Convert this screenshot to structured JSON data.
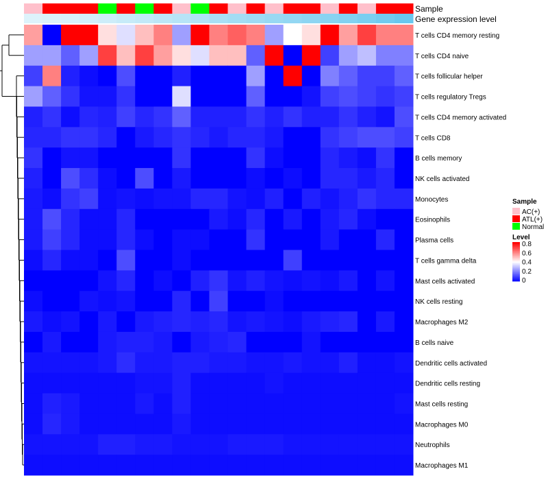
{
  "chart_data": {
    "type": "heatmap",
    "annotations": [
      {
        "name": "Sample",
        "values": [
          "AC(+)",
          "ATL(+)",
          "ATL(+)",
          "ATL(+)",
          "Normal",
          "ATL(+)",
          "Normal",
          "ATL(+)",
          "AC(+)",
          "Normal",
          "ATL(+)",
          "AC(+)",
          "ATL(+)",
          "AC(+)",
          "ATL(+)",
          "ATL(+)",
          "AC(+)",
          "ATL(+)",
          "AC(+)",
          "ATL(+)",
          "ATL(+)"
        ]
      },
      {
        "name": "Gene expression level",
        "values": [
          0.02,
          0.04,
          0.06,
          0.1,
          0.14,
          0.18,
          0.22,
          0.26,
          0.3,
          0.34,
          0.4,
          0.44,
          0.48,
          0.52,
          0.56,
          0.6,
          0.64,
          0.68,
          0.74,
          0.8,
          0.86
        ]
      }
    ],
    "rows": [
      "T cells CD4 memory resting",
      "T cells CD4 naive",
      "T cells follicular helper",
      "T cells regulatory  Tregs",
      "T cells CD4 memory activated",
      "T cells CD8",
      "B cells memory",
      "NK cells activated",
      "Monocytes",
      "Eosinophils",
      "Plasma cells",
      "T cells gamma delta",
      "Mast cells activated",
      "NK cells resting",
      "Macrophages M2",
      "B cells naive",
      "Dendritic cells activated",
      "Dendritic cells resting",
      "Mast cells resting",
      "Macrophages M0",
      "Neutrophils",
      "Macrophages M1"
    ],
    "values": [
      [
        0.55,
        0.0,
        0.8,
        0.8,
        0.45,
        0.35,
        0.5,
        0.6,
        0.25,
        0.8,
        0.6,
        0.65,
        0.6,
        0.25,
        0.4,
        0.45,
        0.8,
        0.55,
        0.7,
        0.6,
        0.6
      ],
      [
        0.25,
        0.25,
        0.15,
        0.25,
        0.7,
        0.5,
        0.7,
        0.55,
        0.45,
        0.35,
        0.5,
        0.5,
        0.15,
        0.8,
        0.0,
        0.8,
        0.1,
        0.25,
        0.3,
        0.2,
        0.2
      ],
      [
        0.1,
        0.6,
        0.05,
        0.02,
        0.0,
        0.12,
        0.0,
        0.0,
        0.05,
        0.0,
        0.0,
        0.0,
        0.25,
        0.0,
        0.8,
        0.0,
        0.2,
        0.15,
        0.1,
        0.1,
        0.15
      ],
      [
        0.25,
        0.15,
        0.08,
        0.03,
        0.03,
        0.08,
        0.0,
        0.0,
        0.35,
        0.0,
        0.0,
        0.0,
        0.15,
        0.0,
        0.0,
        0.03,
        0.1,
        0.12,
        0.1,
        0.08,
        0.1
      ],
      [
        0.05,
        0.08,
        0.02,
        0.06,
        0.05,
        0.1,
        0.06,
        0.08,
        0.15,
        0.05,
        0.05,
        0.05,
        0.08,
        0.05,
        0.08,
        0.05,
        0.05,
        0.08,
        0.05,
        0.03,
        0.12
      ],
      [
        0.06,
        0.06,
        0.08,
        0.08,
        0.06,
        0.0,
        0.04,
        0.06,
        0.08,
        0.06,
        0.04,
        0.06,
        0.06,
        0.04,
        0.0,
        0.0,
        0.08,
        0.1,
        0.12,
        0.12,
        0.1
      ],
      [
        0.08,
        0.0,
        0.03,
        0.03,
        0.0,
        0.0,
        0.0,
        0.0,
        0.08,
        0.0,
        0.0,
        0.0,
        0.08,
        0.02,
        0.0,
        0.0,
        0.06,
        0.04,
        0.02,
        0.08,
        0.0
      ],
      [
        0.05,
        0.0,
        0.12,
        0.07,
        0.02,
        0.0,
        0.12,
        0.0,
        0.04,
        0.0,
        0.0,
        0.0,
        0.02,
        0.0,
        0.02,
        0.0,
        0.06,
        0.06,
        0.04,
        0.06,
        0.0
      ],
      [
        0.04,
        0.02,
        0.08,
        0.1,
        0.02,
        0.03,
        0.02,
        0.03,
        0.03,
        0.06,
        0.06,
        0.03,
        0.02,
        0.05,
        0.0,
        0.05,
        0.03,
        0.05,
        0.08,
        0.06,
        0.06
      ],
      [
        0.04,
        0.12,
        0.06,
        0.02,
        0.02,
        0.06,
        0.0,
        0.0,
        0.0,
        0.0,
        0.04,
        0.02,
        0.06,
        0.0,
        0.04,
        0.0,
        0.04,
        0.06,
        0.02,
        0.0,
        0.0
      ],
      [
        0.04,
        0.1,
        0.06,
        0.02,
        0.02,
        0.06,
        0.02,
        0.0,
        0.02,
        0.02,
        0.0,
        0.0,
        0.08,
        0.0,
        0.0,
        0.0,
        0.04,
        0.0,
        0.0,
        0.06,
        0.0
      ],
      [
        0.02,
        0.06,
        0.02,
        0.02,
        0.0,
        0.12,
        0.0,
        0.0,
        0.02,
        0.0,
        0.0,
        0.0,
        0.0,
        0.0,
        0.1,
        0.0,
        0.0,
        0.0,
        0.0,
        0.0,
        0.0
      ],
      [
        0.0,
        0.0,
        0.0,
        0.0,
        0.03,
        0.06,
        0.0,
        0.02,
        0.0,
        0.05,
        0.08,
        0.03,
        0.05,
        0.03,
        0.02,
        0.03,
        0.02,
        0.04,
        0.0,
        0.03,
        0.0
      ],
      [
        0.02,
        0.0,
        0.0,
        0.03,
        0.02,
        0.03,
        0.0,
        0.0,
        0.06,
        0.0,
        0.1,
        0.0,
        0.0,
        0.02,
        0.0,
        0.0,
        0.0,
        0.0,
        0.0,
        0.0,
        0.0
      ],
      [
        0.04,
        0.02,
        0.03,
        0.0,
        0.04,
        0.0,
        0.04,
        0.05,
        0.06,
        0.05,
        0.06,
        0.03,
        0.04,
        0.03,
        0.02,
        0.04,
        0.05,
        0.06,
        0.0,
        0.04,
        0.0
      ],
      [
        0.0,
        0.04,
        0.0,
        0.0,
        0.04,
        0.05,
        0.05,
        0.04,
        0.0,
        0.04,
        0.05,
        0.06,
        0.0,
        0.0,
        0.0,
        0.03,
        0.0,
        0.0,
        0.0,
        0.0,
        0.0
      ],
      [
        0.03,
        0.03,
        0.03,
        0.03,
        0.04,
        0.07,
        0.04,
        0.04,
        0.05,
        0.05,
        0.04,
        0.04,
        0.03,
        0.03,
        0.04,
        0.03,
        0.03,
        0.05,
        0.02,
        0.02,
        0.03
      ],
      [
        0.02,
        0.02,
        0.02,
        0.02,
        0.02,
        0.02,
        0.03,
        0.03,
        0.05,
        0.02,
        0.02,
        0.02,
        0.02,
        0.03,
        0.02,
        0.02,
        0.02,
        0.02,
        0.02,
        0.02,
        0.02
      ],
      [
        0.02,
        0.05,
        0.04,
        0.02,
        0.02,
        0.02,
        0.04,
        0.02,
        0.05,
        0.02,
        0.02,
        0.02,
        0.02,
        0.02,
        0.02,
        0.02,
        0.02,
        0.02,
        0.02,
        0.02,
        0.03
      ],
      [
        0.02,
        0.06,
        0.04,
        0.02,
        0.02,
        0.02,
        0.02,
        0.02,
        0.04,
        0.02,
        0.02,
        0.02,
        0.02,
        0.02,
        0.02,
        0.02,
        0.02,
        0.02,
        0.02,
        0.02,
        0.02
      ],
      [
        0.03,
        0.03,
        0.03,
        0.03,
        0.05,
        0.05,
        0.04,
        0.04,
        0.03,
        0.03,
        0.03,
        0.04,
        0.04,
        0.04,
        0.03,
        0.03,
        0.03,
        0.03,
        0.03,
        0.03,
        0.03
      ],
      [
        0.02,
        0.02,
        0.02,
        0.02,
        0.02,
        0.02,
        0.02,
        0.02,
        0.02,
        0.02,
        0.02,
        0.02,
        0.02,
        0.02,
        0.02,
        0.02,
        0.02,
        0.02,
        0.02,
        0.02,
        0.02
      ]
    ],
    "legend": {
      "sample": {
        "title": "Sample",
        "entries": [
          "AC(+)",
          "ATL(+)",
          "Normal"
        ]
      },
      "level": {
        "title": "Level",
        "ticks": [
          "0.8",
          "0.6",
          "0.4",
          "0.2",
          "0"
        ]
      }
    },
    "range": [
      0,
      0.8
    ]
  },
  "colors": {
    "low": "#0000ff",
    "mid": "#ffffff",
    "high": "#ff0000",
    "AC(+)": "#ffc0cb",
    "ATL(+)": "#ff0000",
    "Normal": "#00ff00",
    "expr_low": "#e0f4fb",
    "expr_high": "#56c0ec"
  }
}
